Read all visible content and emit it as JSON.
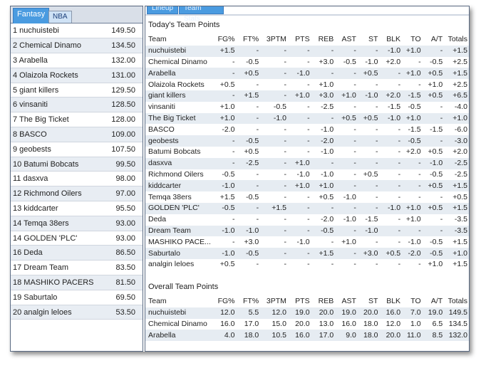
{
  "left_tabs": [
    "Fantasy",
    "NBA"
  ],
  "right_tabs": [
    "Lineup",
    "Team Stats"
  ],
  "standings": [
    {
      "name": "1  nuchuistebi",
      "score": "149.50"
    },
    {
      "name": "2  Chemical Dinamo",
      "score": "134.50"
    },
    {
      "name": "3  Arabella",
      "score": "132.00"
    },
    {
      "name": "4  Olaizola Rockets",
      "score": "131.00"
    },
    {
      "name": "5  giant killers",
      "score": "129.50"
    },
    {
      "name": "6  vinsaniti",
      "score": "128.50"
    },
    {
      "name": "7  The Big Ticket",
      "score": "128.00"
    },
    {
      "name": "8  BASCO",
      "score": "109.00"
    },
    {
      "name": "9  geobests",
      "score": "107.50"
    },
    {
      "name": "10 Batumi Bobcats",
      "score": "99.50"
    },
    {
      "name": "11 dasxva",
      "score": "98.00"
    },
    {
      "name": "12 Richmond Oilers",
      "score": "97.00"
    },
    {
      "name": "13 kiddcarter",
      "score": "95.50"
    },
    {
      "name": "14 Temqa 38ers",
      "score": "93.00"
    },
    {
      "name": "14 GOLDEN 'PLC'",
      "score": "93.00"
    },
    {
      "name": "16 Deda",
      "score": "86.50"
    },
    {
      "name": "17 Dream Team",
      "score": "83.50"
    },
    {
      "name": "18 MASHIKO PACERS",
      "score": "81.50"
    },
    {
      "name": "19 Saburtalo",
      "score": "69.50"
    },
    {
      "name": "20 analgin leloes",
      "score": "53.50"
    }
  ],
  "today": {
    "title": "Today's Team Points",
    "columns": [
      "Team",
      "FG%",
      "FT%",
      "3PTM",
      "PTS",
      "REB",
      "AST",
      "ST",
      "BLK",
      "TO",
      "A/T",
      "Totals"
    ],
    "rows": [
      [
        "nuchuistebi",
        "+1.5",
        "-",
        "-",
        "-",
        "-",
        "-",
        "-",
        "-1.0",
        "+1.0",
        "-",
        "+1.5"
      ],
      [
        "Chemical Dinamo",
        "-",
        "-0.5",
        "-",
        "-",
        "+3.0",
        "-0.5",
        "-1.0",
        "+2.0",
        "-",
        "-0.5",
        "+2.5"
      ],
      [
        "Arabella",
        "-",
        "+0.5",
        "-",
        "-1.0",
        "-",
        "-",
        "+0.5",
        "-",
        "+1.0",
        "+0.5",
        "+1.5"
      ],
      [
        "Olaizola Rockets",
        "+0.5",
        "-",
        "-",
        "-",
        "+1.0",
        "-",
        "-",
        "-",
        "-",
        "+1.0",
        "+2.5"
      ],
      [
        "giant killers",
        "-",
        "+1.5",
        "-",
        "+1.0",
        "+3.0",
        "+1.0",
        "-1.0",
        "+2.0",
        "-1.5",
        "+0.5",
        "+6.5"
      ],
      [
        "vinsaniti",
        "+1.0",
        "-",
        "-0.5",
        "-",
        "-2.5",
        "-",
        "-",
        "-1.5",
        "-0.5",
        "-",
        "-4.0"
      ],
      [
        "The Big Ticket",
        "+1.0",
        "-",
        "-1.0",
        "-",
        "-",
        "+0.5",
        "+0.5",
        "-1.0",
        "+1.0",
        "-",
        "+1.0"
      ],
      [
        "BASCO",
        "-2.0",
        "-",
        "-",
        "-",
        "-1.0",
        "-",
        "-",
        "-",
        "-1.5",
        "-1.5",
        "-6.0"
      ],
      [
        "geobests",
        "-",
        "-0.5",
        "-",
        "-",
        "-2.0",
        "-",
        "-",
        "-",
        "-0.5",
        "-",
        "-3.0"
      ],
      [
        "Batumi Bobcats",
        "-",
        "+0.5",
        "-",
        "-",
        "-1.0",
        "-",
        "-",
        "-",
        "+2.0",
        "+0.5",
        "+2.0"
      ],
      [
        "dasxva",
        "-",
        "-2.5",
        "-",
        "+1.0",
        "-",
        "-",
        "-",
        "-",
        "-",
        "-1.0",
        "-2.5"
      ],
      [
        "Richmond Oilers",
        "-0.5",
        "-",
        "-",
        "-1.0",
        "-1.0",
        "-",
        "+0.5",
        "-",
        "-",
        "-0.5",
        "-2.5"
      ],
      [
        "kiddcarter",
        "-1.0",
        "-",
        "-",
        "+1.0",
        "+1.0",
        "-",
        "-",
        "-",
        "-",
        "+0.5",
        "+1.5"
      ],
      [
        "Temqa 38ers",
        "+1.5",
        "-0.5",
        "-",
        "-",
        "+0.5",
        "-1.0",
        "-",
        "-",
        "-",
        "-",
        "+0.5"
      ],
      [
        "GOLDEN 'PLC'",
        "-0.5",
        "-",
        "+1.5",
        "-",
        "-",
        "-",
        "-",
        "-1.0",
        "+1.0",
        "+0.5",
        "+1.5"
      ],
      [
        "Deda",
        "-",
        "-",
        "-",
        "-",
        "-2.0",
        "-1.0",
        "-1.5",
        "-",
        "+1.0",
        "-",
        "-3.5"
      ],
      [
        "Dream Team",
        "-1.0",
        "-1.0",
        "-",
        "-",
        "-0.5",
        "-",
        "-1.0",
        "-",
        "-",
        "-",
        "-3.5"
      ],
      [
        "MASHIKO PACE...",
        "-",
        "+3.0",
        "-",
        "-1.0",
        "-",
        "+1.0",
        "-",
        "-",
        "-1.0",
        "-0.5",
        "+1.5"
      ],
      [
        "Saburtalo",
        "-1.0",
        "-0.5",
        "-",
        "-",
        "+1.5",
        "-",
        "+3.0",
        "+0.5",
        "-2.0",
        "-0.5",
        "+1.0"
      ],
      [
        "analgin leloes",
        "+0.5",
        "-",
        "-",
        "-",
        "-",
        "-",
        "-",
        "-",
        "-",
        "+1.0",
        "+1.5"
      ]
    ]
  },
  "overall": {
    "title": "Overall Team Points",
    "columns": [
      "Team",
      "FG%",
      "FT%",
      "3PTM",
      "PTS",
      "REB",
      "AST",
      "ST",
      "BLK",
      "TO",
      "A/T",
      "Totals"
    ],
    "rows": [
      [
        "nuchuistebi",
        "12.0",
        "5.5",
        "12.0",
        "19.0",
        "20.0",
        "19.0",
        "20.0",
        "16.0",
        "7.0",
        "19.0",
        "149.5"
      ],
      [
        "Chemical Dinamo",
        "16.0",
        "17.0",
        "15.0",
        "20.0",
        "13.0",
        "16.0",
        "18.0",
        "12.0",
        "1.0",
        "6.5",
        "134.5"
      ],
      [
        "Arabella",
        "4.0",
        "18.0",
        "10.5",
        "16.0",
        "17.0",
        "9.0",
        "18.0",
        "20.0",
        "11.0",
        "8.5",
        "132.0"
      ]
    ]
  }
}
